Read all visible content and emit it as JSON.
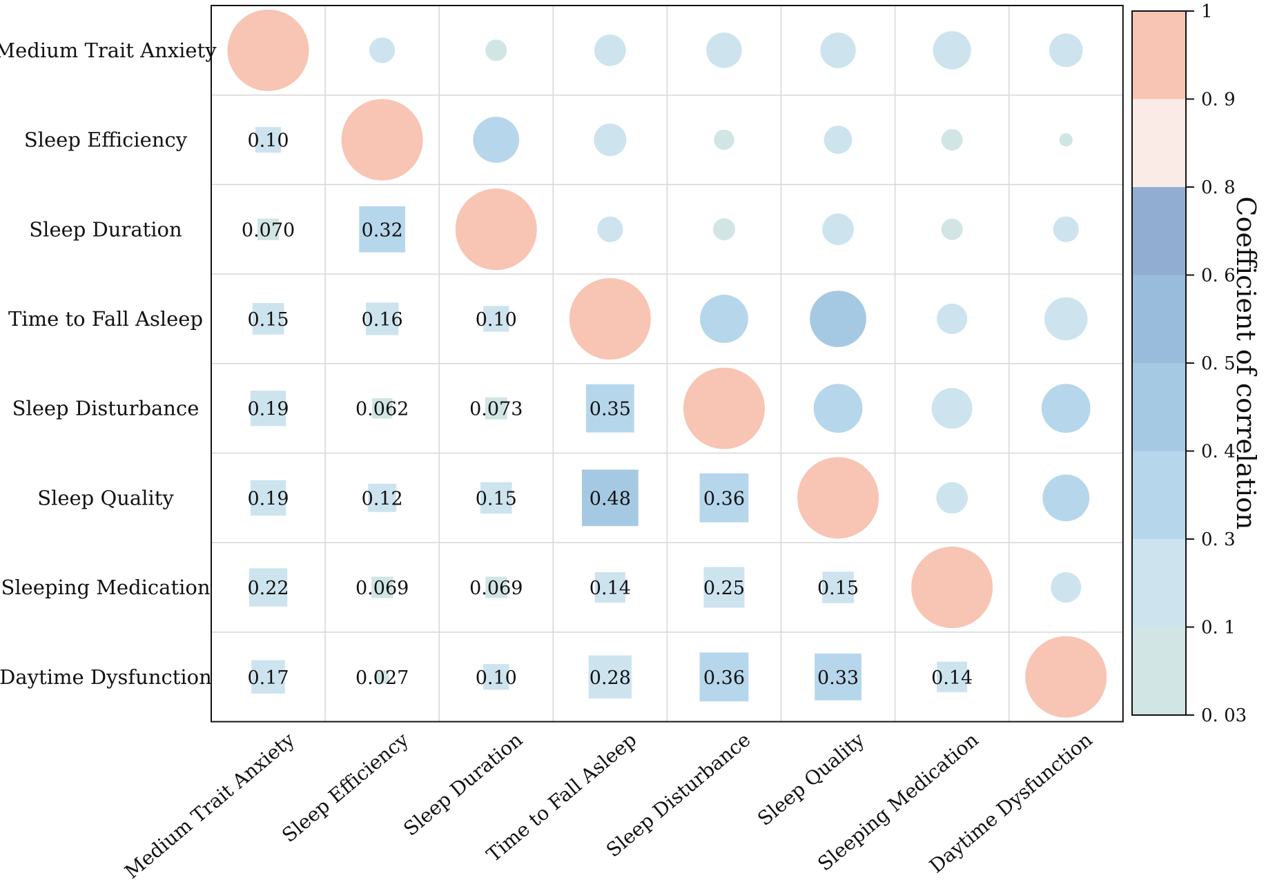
{
  "chart_data": {
    "type": "heatmap",
    "title": "",
    "variables": [
      "Medium Trait Anxiety",
      "Sleep Efficiency",
      "Sleep Duration",
      "Time to Fall Asleep",
      "Sleep Disturbance",
      "Sleep Quality",
      "Sleeping Medication",
      "Daytime Dysfunction"
    ],
    "lower_triangle_labels": [
      [
        "",
        "",
        "",
        "",
        "",
        "",
        "",
        ""
      ],
      [
        "0.10",
        "",
        "",
        "",
        "",
        "",
        "",
        ""
      ],
      [
        "0.070",
        "0.32",
        "",
        "",
        "",
        "",
        "",
        ""
      ],
      [
        "0.15",
        "0.16",
        "0.10",
        "",
        "",
        "",
        "",
        ""
      ],
      [
        "0.19",
        "0.062",
        "0.073",
        "0.35",
        "",
        "",
        "",
        ""
      ],
      [
        "0.19",
        "0.12",
        "0.15",
        "0.48",
        "0.36",
        "",
        "",
        ""
      ],
      [
        "0.22",
        "0.069",
        "0.069",
        "0.14",
        "0.25",
        "0.15",
        "",
        ""
      ],
      [
        "0.17",
        "0.027",
        "0.10",
        "0.28",
        "0.36",
        "0.33",
        "0.14",
        ""
      ]
    ],
    "matrix": [
      [
        1,
        0.1,
        0.07,
        0.15,
        0.19,
        0.19,
        0.22,
        0.17
      ],
      [
        0.1,
        1,
        0.32,
        0.16,
        0.062,
        0.12,
        0.069,
        0.027
      ],
      [
        0.07,
        0.32,
        1,
        0.1,
        0.073,
        0.15,
        0.069,
        0.1
      ],
      [
        0.15,
        0.16,
        0.1,
        1,
        0.35,
        0.48,
        0.14,
        0.28
      ],
      [
        0.19,
        0.062,
        0.073,
        0.35,
        1,
        0.36,
        0.25,
        0.36
      ],
      [
        0.19,
        0.12,
        0.15,
        0.48,
        0.36,
        1,
        0.15,
        0.33
      ],
      [
        0.22,
        0.069,
        0.069,
        0.14,
        0.25,
        0.15,
        1,
        0.14
      ],
      [
        0.17,
        0.027,
        0.1,
        0.28,
        0.36,
        0.33,
        0.14,
        1
      ]
    ],
    "upper_shape": "circle",
    "lower_shape": "square",
    "colorbar": {
      "title": "Coefficient of correlation",
      "tick_labels": [
        "1",
        "0. 9",
        "0. 8",
        "0. 6",
        "0. 5",
        "0. 4",
        "0. 3",
        "0. 1",
        "0. 03"
      ],
      "bands": [
        {
          "from": 0.9,
          "to": 1.0,
          "color": "#f8c4b4"
        },
        {
          "from": 0.8,
          "to": 0.9,
          "color": "#fbebe6"
        },
        {
          "from": 0.6,
          "to": 0.8,
          "color": "#91aed2"
        },
        {
          "from": 0.5,
          "to": 0.6,
          "color": "#99bcdc"
        },
        {
          "from": 0.4,
          "to": 0.5,
          "color": "#a6c9e3"
        },
        {
          "from": 0.3,
          "to": 0.4,
          "color": "#b6d6eb"
        },
        {
          "from": 0.1,
          "to": 0.3,
          "color": "#cde4ef"
        },
        {
          "from": 0.03,
          "to": 0.1,
          "color": "#d1e5e5"
        }
      ]
    }
  }
}
